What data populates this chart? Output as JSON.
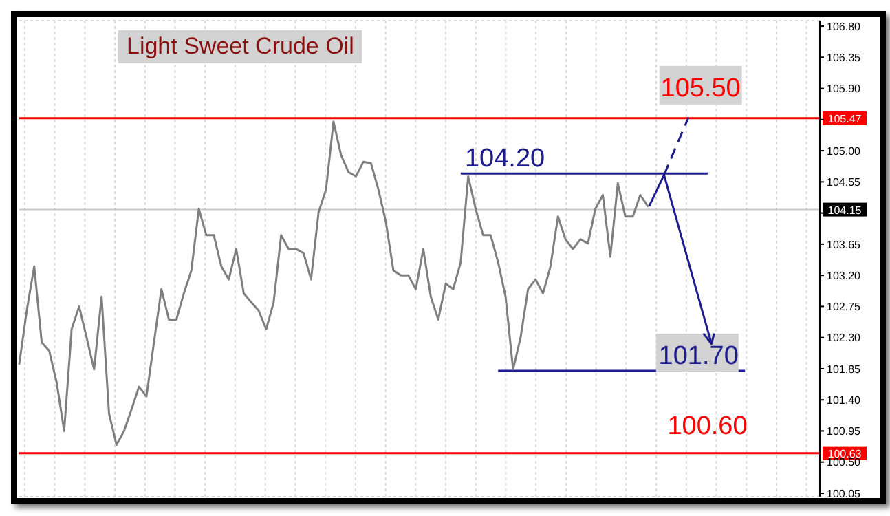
{
  "chart_data": {
    "type": "line",
    "title": "Light Sweet Crude Oil",
    "categories": [
      null,
      null,
      null,
      null,
      null,
      null,
      null,
      null,
      null,
      null,
      null,
      null,
      null,
      null,
      null,
      null,
      null,
      null,
      null,
      null,
      null,
      null,
      null,
      null,
      null,
      null,
      null,
      null,
      null,
      null,
      null,
      null,
      null,
      null,
      null,
      null,
      null,
      null,
      null,
      null,
      null,
      null,
      null,
      null,
      null,
      null,
      null,
      null,
      null,
      null,
      null,
      null,
      null,
      null,
      null,
      null,
      null,
      null,
      null,
      null,
      null,
      null,
      null,
      null,
      null,
      null,
      null,
      null,
      null,
      null,
      null,
      null,
      null,
      null,
      null,
      null,
      null,
      null,
      null,
      null,
      null,
      null,
      null,
      null,
      null,
      null,
      null,
      null,
      null,
      null,
      null,
      null,
      null,
      null,
      null,
      null,
      null,
      null,
      null,
      null,
      null,
      null,
      null,
      null,
      null,
      null,
      null,
      null
    ],
    "ylim": [
      100.0,
      106.88
    ],
    "yticks": [
      {
        "value": 106.8,
        "label": "106.80"
      },
      {
        "value": 106.35,
        "label": "106.35"
      },
      {
        "value": 105.9,
        "label": "105.90"
      },
      {
        "value": 105.45,
        "label": null
      },
      {
        "value": 105.0,
        "label": "105.00"
      },
      {
        "value": 104.55,
        "label": "104.55"
      },
      {
        "value": 104.1,
        "label": null
      },
      {
        "value": 103.65,
        "label": "103.65"
      },
      {
        "value": 103.2,
        "label": "103.20"
      },
      {
        "value": 102.75,
        "label": "102.75"
      },
      {
        "value": 102.3,
        "label": "102.30"
      },
      {
        "value": 101.85,
        "label": "101.85"
      },
      {
        "value": 101.4,
        "label": "101.40"
      },
      {
        "value": 100.95,
        "label": "100.95"
      },
      {
        "value": 100.5,
        "label": "100.50"
      },
      {
        "value": 100.05,
        "label": "100.05"
      }
    ],
    "tick_labels": "y",
    "grid": true,
    "marker": "none",
    "line_style": "solid",
    "series": [
      {
        "color": "#7f7f7f",
        "values": [
          101.92,
          102.69,
          103.33,
          102.23,
          102.11,
          101.65,
          100.95,
          102.42,
          102.75,
          102.3,
          101.84,
          102.89,
          101.2,
          100.75,
          100.95,
          101.26,
          101.59,
          101.45,
          102.23,
          103.0,
          102.56,
          102.56,
          102.94,
          103.27,
          104.16,
          103.78,
          103.78,
          103.33,
          103.14,
          103.58,
          102.94,
          102.81,
          102.69,
          102.42,
          102.81,
          103.78,
          103.58,
          103.58,
          103.52,
          103.14,
          104.11,
          104.44,
          105.42,
          104.94,
          104.69,
          104.63,
          104.84,
          104.82,
          104.44,
          103.97,
          103.27,
          103.2,
          103.2,
          103.0,
          103.58,
          102.89,
          102.56,
          103.08,
          103.0,
          103.39,
          104.63,
          104.16,
          103.78,
          103.78,
          103.39,
          102.89,
          101.84,
          102.3,
          103.0,
          103.14,
          102.94,
          103.33,
          104.05,
          103.72,
          103.58,
          103.72,
          103.66,
          104.16,
          104.36,
          103.47,
          104.53,
          104.05,
          104.05,
          104.36,
          104.2,
          null,
          null,
          null,
          null,
          null,
          null,
          null,
          null,
          null,
          null,
          null,
          null,
          null,
          null,
          null,
          null,
          null,
          null,
          null,
          null,
          null,
          null,
          null
        ]
      }
    ],
    "ref_lines": [
      {
        "axis": "y",
        "value": 105.47,
        "label": "105.47",
        "color": "#ff0000"
      },
      {
        "axis": "y",
        "value": 100.63,
        "label": "100.63",
        "color": "#ff0000"
      },
      {
        "axis": "y",
        "value": 104.15,
        "label": "104.15",
        "color": "#c8c8c8"
      },
      {
        "axis": "y",
        "value": 104.67,
        "color": "#1c1c8f"
      },
      {
        "axis": "y",
        "value": 101.82,
        "color": "#1c1c8f"
      }
    ],
    "annotations": [
      {
        "text": "105.50",
        "y": 105.47
      },
      {
        "text": "100.60",
        "y": 100.63
      },
      "104.20",
      "101.70"
    ]
  }
}
